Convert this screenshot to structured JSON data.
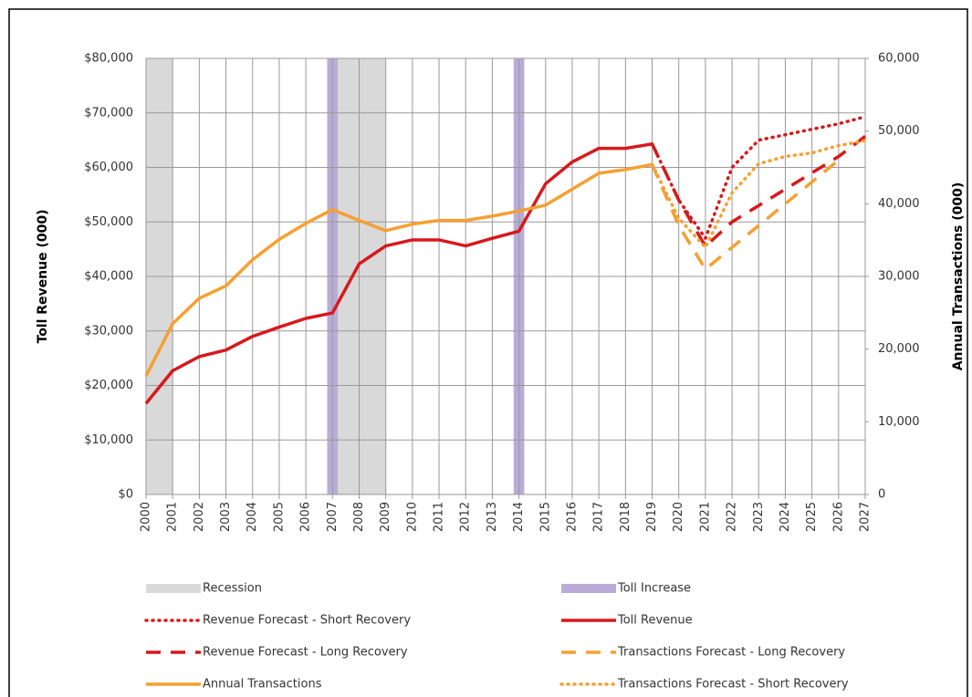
{
  "chart_data": {
    "type": "line",
    "y_label": "Toll Revenue (000)",
    "y2_label": "Annual Transactions (000)",
    "xlim": [
      2000,
      2027
    ],
    "xticks": [
      2000,
      2001,
      2002,
      2003,
      2004,
      2005,
      2006,
      2007,
      2008,
      2009,
      2010,
      2011,
      2012,
      2013,
      2014,
      2015,
      2016,
      2017,
      2018,
      2019,
      2020,
      2021,
      2022,
      2023,
      2024,
      2025,
      2026,
      2027
    ],
    "ylim": [
      0,
      80000
    ],
    "yticks": [
      {
        "value": 0,
        "label": "$0"
      },
      {
        "value": 10000,
        "label": "$10,000"
      },
      {
        "value": 20000,
        "label": "$20,000"
      },
      {
        "value": 30000,
        "label": "$30,000"
      },
      {
        "value": 40000,
        "label": "$40,000"
      },
      {
        "value": 50000,
        "label": "$50,000"
      },
      {
        "value": 60000,
        "label": "$60,000"
      },
      {
        "value": 70000,
        "label": "$70,000"
      },
      {
        "value": 80000,
        "label": "$80,000"
      }
    ],
    "y2lim": [
      0,
      60000
    ],
    "y2ticks": [
      0,
      {
        "value": 10000,
        "label": "10,000"
      },
      {
        "value": 20000,
        "label": "20,000"
      },
      {
        "value": 30000,
        "label": "30,000"
      },
      {
        "value": 40000,
        "label": "40,000"
      },
      {
        "value": 50000,
        "label": "50,000"
      },
      {
        "value": 60000,
        "label": "60,000"
      }
    ],
    "grid": true,
    "bands": [
      {
        "name": "Recession",
        "color": "#d9d9d9",
        "ranges": [
          [
            2000,
            2001
          ],
          [
            2007,
            2009
          ]
        ]
      },
      {
        "name": "Toll Increase",
        "color": "#b9acd9",
        "ranges": [
          [
            2006.8,
            2007.2
          ],
          [
            2013.8,
            2014.2
          ]
        ]
      }
    ],
    "series": [
      {
        "name": "Revenue Forecast - Short Recovery",
        "color": "#d7191c",
        "dash": "dot",
        "axis": "y",
        "x": [
          2019,
          2020,
          2021,
          2022,
          2023,
          2024,
          2025,
          2026,
          2027
        ],
        "values": [
          64300,
          54000,
          47000,
          60000,
          65000,
          66000,
          67000,
          68000,
          69300
        ]
      },
      {
        "name": "Toll Revenue",
        "color": "#d7191c",
        "dash": "solid",
        "axis": "y",
        "x": [
          2000,
          2001,
          2002,
          2003,
          2004,
          2005,
          2006,
          2007,
          2008,
          2009,
          2010,
          2011,
          2012,
          2013,
          2014,
          2015,
          2016,
          2017,
          2018,
          2019
        ],
        "values": [
          16700,
          22700,
          25300,
          26500,
          29000,
          30700,
          32300,
          33300,
          42300,
          45600,
          46700,
          46700,
          45600,
          47000,
          48300,
          57000,
          61000,
          63500,
          63500,
          64300
        ]
      },
      {
        "name": "Revenue Forecast - Long Recovery",
        "color": "#d7191c",
        "dash": "dash",
        "axis": "y",
        "x": [
          2019,
          2020,
          2021,
          2022,
          2023,
          2024,
          2025,
          2026,
          2027
        ],
        "values": [
          64300,
          54000,
          45500,
          50000,
          53000,
          56000,
          59000,
          62000,
          65700
        ]
      },
      {
        "name": "Transactions Forecast - Long Recovery",
        "color": "#f5a031",
        "dash": "dash",
        "axis": "y2",
        "x": [
          2019,
          2020,
          2021,
          2022,
          2023,
          2024,
          2025,
          2026
        ],
        "values": [
          45400,
          37000,
          31000,
          34000,
          37000,
          40000,
          43000,
          46000
        ]
      },
      {
        "name": "Annual Transactions",
        "color": "#f5a031",
        "dash": "solid",
        "axis": "y2",
        "x": [
          2000,
          2001,
          2002,
          2003,
          2004,
          2005,
          2006,
          2007,
          2008,
          2009,
          2010,
          2011,
          2012,
          2013,
          2014,
          2015,
          2016,
          2017,
          2018,
          2019
        ],
        "values": [
          16300,
          23500,
          27000,
          28700,
          32300,
          35100,
          37300,
          39200,
          37700,
          36300,
          37200,
          37700,
          37700,
          38300,
          39000,
          39800,
          42000,
          44200,
          44700,
          45400
        ]
      },
      {
        "name": "Transactions Forecast - Short Recovery",
        "color": "#f5a031",
        "dash": "dot",
        "axis": "y2",
        "x": [
          2019,
          2020,
          2021,
          2022,
          2023,
          2024,
          2025,
          2026,
          2027
        ],
        "values": [
          45400,
          38000,
          34000,
          41500,
          45500,
          46500,
          47000,
          48000,
          48700
        ]
      }
    ]
  }
}
